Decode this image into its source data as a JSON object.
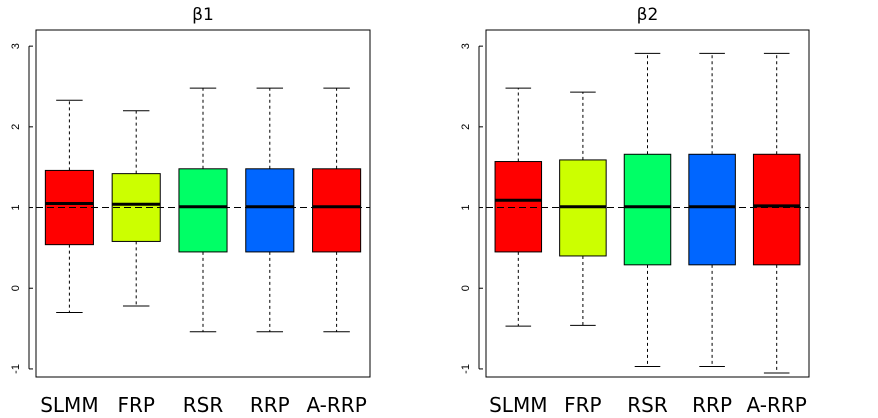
{
  "chart_data": [
    {
      "type": "boxplot",
      "title": "β1",
      "xlabel": "",
      "ylabel": "",
      "ylim": [
        -1.1,
        3.2
      ],
      "yticks": [
        -1,
        0,
        1,
        2,
        3
      ],
      "reference_line": 1,
      "categories": [
        "SLMM",
        "FRP",
        "RSR",
        "RRP",
        "A-RRP"
      ],
      "colors": [
        "#ff0000",
        "#ccff00",
        "#00ff66",
        "#0066ff",
        "#ff0000"
      ],
      "boxes": [
        {
          "whisker_low": -0.3,
          "q1": 0.54,
          "median": 1.05,
          "q3": 1.46,
          "whisker_high": 2.33
        },
        {
          "whisker_low": -0.22,
          "q1": 0.58,
          "median": 1.04,
          "q3": 1.42,
          "whisker_high": 2.2
        },
        {
          "whisker_low": -0.54,
          "q1": 0.45,
          "median": 1.01,
          "q3": 1.48,
          "whisker_high": 2.48
        },
        {
          "whisker_low": -0.54,
          "q1": 0.45,
          "median": 1.01,
          "q3": 1.48,
          "whisker_high": 2.48
        },
        {
          "whisker_low": -0.54,
          "q1": 0.45,
          "median": 1.01,
          "q3": 1.48,
          "whisker_high": 2.48
        }
      ]
    },
    {
      "type": "boxplot",
      "title": "β2",
      "xlabel": "",
      "ylabel": "",
      "ylim": [
        -1.1,
        3.2
      ],
      "yticks": [
        -1,
        0,
        1,
        2,
        3
      ],
      "reference_line": 1,
      "categories": [
        "SLMM",
        "FRP",
        "RSR",
        "RRP",
        "A-RRP"
      ],
      "colors": [
        "#ff0000",
        "#ccff00",
        "#00ff66",
        "#0066ff",
        "#ff0000"
      ],
      "boxes": [
        {
          "whisker_low": -0.47,
          "q1": 0.45,
          "median": 1.09,
          "q3": 1.57,
          "whisker_high": 2.48
        },
        {
          "whisker_low": -0.46,
          "q1": 0.4,
          "median": 1.01,
          "q3": 1.59,
          "whisker_high": 2.43
        },
        {
          "whisker_low": -0.97,
          "q1": 0.29,
          "median": 1.01,
          "q3": 1.66,
          "whisker_high": 2.91
        },
        {
          "whisker_low": -0.97,
          "q1": 0.29,
          "median": 1.01,
          "q3": 1.66,
          "whisker_high": 2.91
        },
        {
          "whisker_low": -1.05,
          "q1": 0.29,
          "median": 1.02,
          "q3": 1.66,
          "whisker_high": 2.91
        }
      ]
    }
  ]
}
